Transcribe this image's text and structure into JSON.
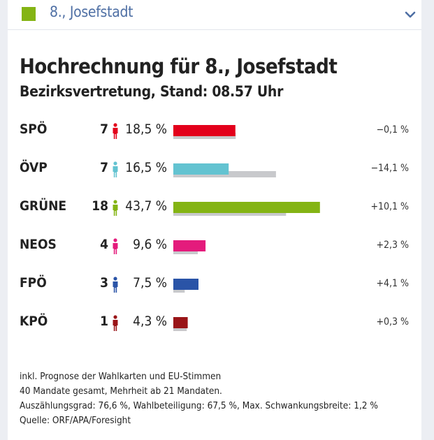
{
  "header": {
    "label": "8., Josefstadt",
    "accent": "#84b414"
  },
  "chart_data": {
    "type": "bar",
    "title": "Hochrechnung für 8., Josefstadt",
    "subtitle": "Bezirksvertretung, Stand: 08.57 Uhr",
    "categories": [
      "SPÖ",
      "ÖVP",
      "GRÜNE",
      "NEOS",
      "FPÖ",
      "KPÖ"
    ],
    "series": [
      {
        "values": [
          18.5,
          16.5,
          43.7,
          9.6,
          7.5,
          4.3
        ]
      },
      {
        "values": [
          18.6,
          30.6,
          33.6,
          7.3,
          3.4,
          4.0
        ]
      }
    ],
    "parties": [
      {
        "name": "SPÖ",
        "seats": "7",
        "percent": "18,5 %",
        "value": 18.5,
        "previous": 18.6,
        "change": "−0,1 %",
        "color": "#e3001b"
      },
      {
        "name": "ÖVP",
        "seats": "7",
        "percent": "16,5 %",
        "value": 16.5,
        "previous": 30.6,
        "change": "−14,1 %",
        "color": "#63c3d1"
      },
      {
        "name": "GRÜNE",
        "seats": "18",
        "percent": "43,7 %",
        "value": 43.7,
        "previous": 33.6,
        "change": "+10,1 %",
        "color": "#84b414"
      },
      {
        "name": "NEOS",
        "seats": "4",
        "percent": "9,6 %",
        "value": 9.6,
        "previous": 7.3,
        "change": "+2,3 %",
        "color": "#e41b7c"
      },
      {
        "name": "FPÖ",
        "seats": "3",
        "percent": "7,5 %",
        "value": 7.5,
        "previous": 3.4,
        "change": "+4,1 %",
        "color": "#2a54a7"
      },
      {
        "name": "KPÖ",
        "seats": "1",
        "percent": "4,3 %",
        "value": 4.3,
        "previous": 4.0,
        "change": "+0,3 %",
        "color": "#9a1518"
      }
    ],
    "previous_color": "#c8c9cc",
    "ylim": [
      0,
      100
    ],
    "grid": false
  },
  "footnotes": [
    "inkl. Prognose der Wahlkarten und EU-Stimmen",
    "40 Mandate gesamt, Mehrheit ab 21 Mandaten.",
    "Auszählungsgrad: 76,6 %, Wahlbeteiligung: 67,5 %, Max. Schwankungsbreite: 1,2 %",
    "Quelle: ORF/APA/Foresight"
  ],
  "icons": {
    "collapse": "chevron-down-icon",
    "seat": "person-icon"
  }
}
